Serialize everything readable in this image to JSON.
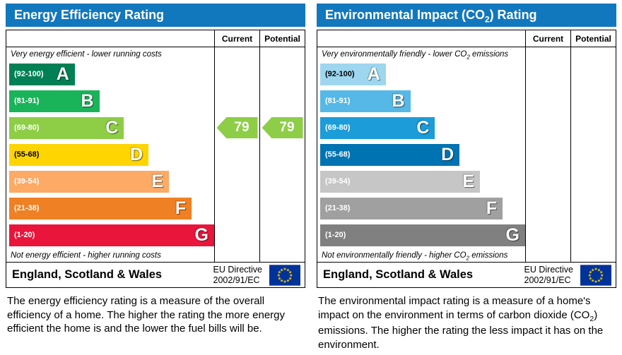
{
  "left": {
    "title_pre": "Energy Efficiency Rating",
    "title_sub": "",
    "title_post": "",
    "col_current": "Current",
    "col_potential": "Potential",
    "top_note_pre": "Very energy efficient - lower running costs",
    "top_note_sub": "",
    "top_note_post": "",
    "bottom_note_pre": "Not energy efficient - higher running costs",
    "bottom_note_sub": "",
    "bottom_note_post": "",
    "bands": [
      {
        "range": "(92-100)",
        "letter": "A",
        "color": "#008054",
        "width_pct": 32,
        "label_color": "#ffffff"
      },
      {
        "range": "(81-91)",
        "letter": "B",
        "color": "#19b459",
        "width_pct": 44,
        "label_color": "#ffffff"
      },
      {
        "range": "(69-80)",
        "letter": "C",
        "color": "#8dce46",
        "width_pct": 56,
        "label_color": "#ffffff"
      },
      {
        "range": "(55-68)",
        "letter": "D",
        "color": "#ffd500",
        "width_pct": 68,
        "label_color": "#000000"
      },
      {
        "range": "(39-54)",
        "letter": "E",
        "color": "#fcaa65",
        "width_pct": 78,
        "label_color": "#ffffff"
      },
      {
        "range": "(21-38)",
        "letter": "F",
        "color": "#ef8023",
        "width_pct": 89,
        "label_color": "#ffffff"
      },
      {
        "range": "(1-20)",
        "letter": "G",
        "color": "#e9153b",
        "width_pct": 100,
        "label_color": "#ffffff"
      }
    ],
    "current": {
      "value": "79",
      "band_index": 2,
      "color": "#8dce46"
    },
    "potential": {
      "value": "79",
      "band_index": 2,
      "color": "#8dce46"
    },
    "footer_region": "England, Scotland & Wales",
    "directive_line1": "EU Directive",
    "directive_line2": "2002/91/EC",
    "desc_pre": "The energy efficiency rating is a measure of the overall efficiency of a home. The higher the rating the more energy efficient the home is and the lower the fuel bills will be.",
    "desc_sub": "",
    "desc_post": ""
  },
  "right": {
    "title_pre": "Environmental Impact (CO",
    "title_sub": "2",
    "title_post": ") Rating",
    "col_current": "Current",
    "col_potential": "Potential",
    "top_note_pre": "Very environmentally friendly - lower CO",
    "top_note_sub": "2",
    "top_note_post": " emissions",
    "bottom_note_pre": "Not environmentally friendly - higher CO",
    "bottom_note_sub": "2",
    "bottom_note_post": " emissions",
    "bands": [
      {
        "range": "(92-100)",
        "letter": "A",
        "color": "#9ed6f0",
        "width_pct": 32,
        "label_color": "#000000"
      },
      {
        "range": "(81-91)",
        "letter": "B",
        "color": "#55b8e6",
        "width_pct": 44,
        "label_color": "#ffffff"
      },
      {
        "range": "(69-80)",
        "letter": "C",
        "color": "#1c9cd8",
        "width_pct": 56,
        "label_color": "#ffffff"
      },
      {
        "range": "(55-68)",
        "letter": "D",
        "color": "#0073b3",
        "width_pct": 68,
        "label_color": "#ffffff"
      },
      {
        "range": "(39-54)",
        "letter": "E",
        "color": "#c6c6c6",
        "width_pct": 78,
        "label_color": "#ffffff"
      },
      {
        "range": "(21-38)",
        "letter": "F",
        "color": "#a0a0a0",
        "width_pct": 89,
        "label_color": "#ffffff"
      },
      {
        "range": "(1-20)",
        "letter": "G",
        "color": "#808080",
        "width_pct": 100,
        "label_color": "#ffffff"
      }
    ],
    "current": null,
    "potential": null,
    "footer_region": "England, Scotland & Wales",
    "directive_line1": "EU Directive",
    "directive_line2": "2002/91/EC",
    "desc_pre": "The environmental impact rating is a measure of a home's impact on the environment in terms of carbon dioxide (CO",
    "desc_sub": "2",
    "desc_post": ") emissions. The higher the rating the less impact it has on the environment."
  },
  "chart_data": [
    {
      "type": "bar",
      "title": "Energy Efficiency Rating",
      "categories": [
        "A (92-100)",
        "B (81-91)",
        "C (69-80)",
        "D (55-68)",
        "E (39-54)",
        "F (21-38)",
        "G (1-20)"
      ],
      "series": [
        {
          "name": "Current",
          "values": [
            79
          ],
          "band": "C"
        },
        {
          "name": "Potential",
          "values": [
            79
          ],
          "band": "C"
        }
      ],
      "xlim": [
        1,
        100
      ],
      "notes": [
        "Very energy efficient - lower running costs",
        "Not energy efficient - higher running costs"
      ],
      "footer": "England, Scotland & Wales | EU Directive 2002/91/EC"
    },
    {
      "type": "bar",
      "title": "Environmental Impact (CO2) Rating",
      "categories": [
        "A (92-100)",
        "B (81-91)",
        "C (69-80)",
        "D (55-68)",
        "E (39-54)",
        "F (21-38)",
        "G (1-20)"
      ],
      "series": [
        {
          "name": "Current",
          "values": []
        },
        {
          "name": "Potential",
          "values": []
        }
      ],
      "xlim": [
        1,
        100
      ],
      "notes": [
        "Very environmentally friendly - lower CO2 emissions",
        "Not environmentally friendly - higher CO2 emissions"
      ],
      "footer": "England, Scotland & Wales | EU Directive 2002/91/EC"
    }
  ]
}
